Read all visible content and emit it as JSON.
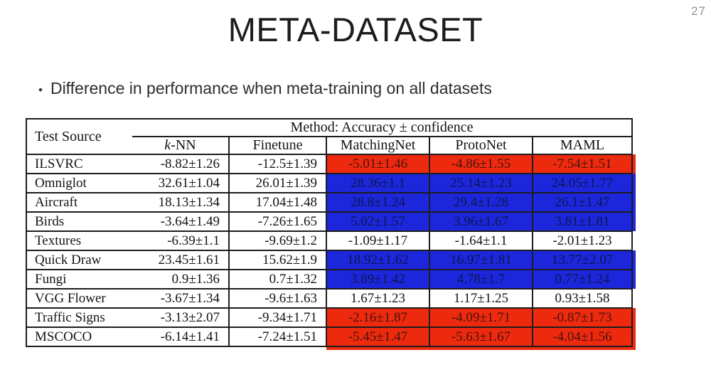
{
  "slide": {
    "number": "27",
    "title": "META-DATASET",
    "bullet_marker": "•",
    "bullet": "Difference in performance when meta-training on all datasets"
  },
  "colors": {
    "negative_highlight": "#ee2a0e",
    "positive_highlight": "#1c27dc",
    "table_border": "#1d1d1d"
  },
  "table": {
    "corner_header": "Test Source",
    "group_header": "Method: Accuracy ± confidence",
    "method_headers": [
      {
        "italic": "k",
        "text": "-NN"
      },
      {
        "text": "Finetune"
      },
      {
        "text": "MatchingNet"
      },
      {
        "text": "ProtoNet"
      },
      {
        "text": "MAML"
      }
    ],
    "rows": [
      {
        "source": "ILSVRC",
        "values": [
          "-8.82±1.26",
          "-12.5±1.39",
          "-5.01±1.46",
          "-4.86±1.55",
          "-7.54±1.51"
        ],
        "highlight": "red"
      },
      {
        "source": "Omniglot",
        "values": [
          "32.61±1.04",
          "26.01±1.39",
          "28.36±1.1",
          "25.14±1.23",
          "24.05±1.77"
        ],
        "highlight": "blue"
      },
      {
        "source": "Aircraft",
        "values": [
          "18.13±1.34",
          "17.04±1.48",
          "28.8±1.24",
          "29.4±1.28",
          "26.1±1.47"
        ],
        "highlight": "blue"
      },
      {
        "source": "Birds",
        "values": [
          "-3.64±1.49",
          "-7.26±1.65",
          "5.02±1.57",
          "3.96±1.67",
          "3.81±1.81"
        ],
        "highlight": "blue"
      },
      {
        "source": "Textures",
        "values": [
          "-6.39±1.1",
          "-9.69±1.2",
          "-1.09±1.17",
          "-1.64±1.1",
          "-2.01±1.23"
        ],
        "highlight": null
      },
      {
        "source": "Quick Draw",
        "values": [
          "23.45±1.61",
          "15.62±1.9",
          "18.92±1.62",
          "16.97±1.81",
          "13.77±2.07"
        ],
        "highlight": "blue"
      },
      {
        "source": "Fungi",
        "values": [
          "0.9±1.36",
          "0.7±1.32",
          "3.89±1.42",
          "4.78±1.7",
          "0.77±1.24"
        ],
        "highlight": "blue"
      },
      {
        "source": "VGG Flower",
        "values": [
          "-3.67±1.34",
          "-9.6±1.63",
          "1.67±1.23",
          "1.17±1.25",
          "0.93±1.58"
        ],
        "highlight": null
      },
      {
        "source": "Traffic Signs",
        "values": [
          "-3.13±2.07",
          "-9.34±1.71",
          "-2.16±1.87",
          "-4.09±1.71",
          "-0.87±1.73"
        ],
        "highlight": "red"
      },
      {
        "source": "MSCOCO",
        "values": [
          "-6.14±1.41",
          "-7.24±1.51",
          "-5.45±1.47",
          "-5.63±1.67",
          "-4.04±1.56"
        ],
        "highlight": "red"
      }
    ]
  }
}
